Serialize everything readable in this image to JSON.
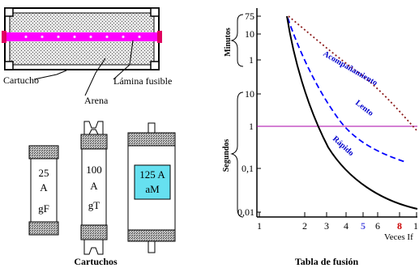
{
  "cartridge_section": {
    "labels": {
      "cartucho": "Cartucho",
      "lamina": "Lámina fusible",
      "arena": "Arena"
    },
    "fuses": [
      {
        "rating": "25",
        "unit": "A",
        "class": "gF"
      },
      {
        "rating": "100",
        "unit": "A",
        "class": "gT"
      },
      {
        "rating": "125 A",
        "class": "aM"
      }
    ],
    "caption": "Cartuchos",
    "colors": {
      "strip": "#ff00ff",
      "window": "#66e0f0",
      "sand": "#c8c8c8"
    }
  },
  "fusion_chart": {
    "caption": "Tabla de fusión",
    "ylabel_minutes": "Minutos",
    "ylabel_seconds": "Segundos",
    "xlabel": "Veces If",
    "min_ticks": [
      "75",
      "10",
      "1"
    ],
    "sec_ticks": [
      "10",
      "1",
      "0,1",
      "0,01"
    ],
    "x_ticks": [
      {
        "label": "1",
        "color": "#000000"
      },
      {
        "label": "2",
        "color": "#000000"
      },
      {
        "label": "3",
        "color": "#000000"
      },
      {
        "label": "4",
        "color": "#000000"
      },
      {
        "label": "5",
        "color": "#5050e0"
      },
      {
        "label": "6",
        "color": "#000000"
      },
      {
        "label": "8",
        "color": "#cc0000"
      },
      {
        "label": "1",
        "color": "#000000"
      }
    ],
    "curve_labels": {
      "acompanamiento": "Acompañamiento",
      "lento": "Lento",
      "rapido": "Rápido"
    },
    "colors": {
      "acompanamiento": "#8b1a1a",
      "lento": "#0000ff",
      "rapido": "#000000",
      "one_second_line": "#aa00aa"
    }
  }
}
